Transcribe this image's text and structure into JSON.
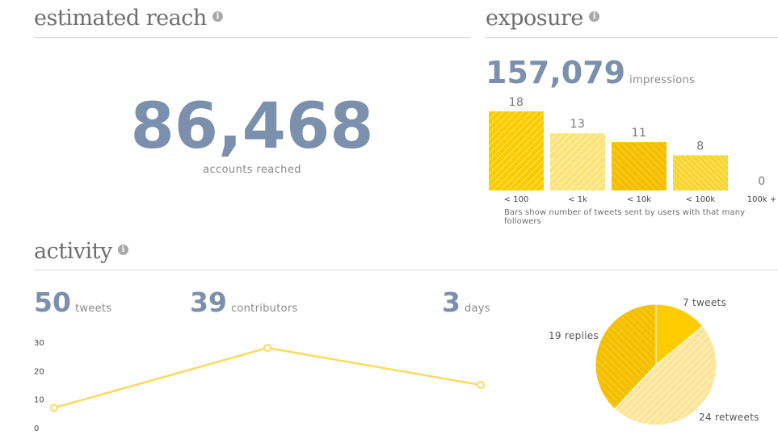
{
  "reach": {
    "title": "estimated reach",
    "info_icon": "info-icon",
    "value": "86,468",
    "label": "accounts reached"
  },
  "exposure": {
    "title": "exposure",
    "info_icon": "info-icon",
    "value": "157,079",
    "label": "impressions",
    "note": "Bars show number of tweets sent by users with that many followers"
  },
  "activity": {
    "title": "activity",
    "info_icon": "info-icon",
    "stats": [
      {
        "value": "50",
        "label": "tweets"
      },
      {
        "value": "39",
        "label": "contributors"
      },
      {
        "value": "3",
        "label": "days"
      }
    ]
  },
  "colors": {
    "accent": "#f8cc00",
    "accent_light": "#fbe37a",
    "accent_dark": "#f4bf00",
    "line": "#fada5e",
    "number": "#7b90ad"
  },
  "chart_data": [
    {
      "type": "bar",
      "categories": [
        "< 100",
        "< 1k",
        "< 10k",
        "< 100k",
        "100k +"
      ],
      "values": [
        18,
        13,
        11,
        8,
        0
      ],
      "data_labels": [
        "18",
        "13",
        "11",
        "8",
        "0"
      ],
      "ylim": [
        0,
        18
      ],
      "grid": false
    },
    {
      "type": "line",
      "x": [
        1,
        2,
        3
      ],
      "values": [
        7,
        28,
        15
      ],
      "yticks": [
        "0",
        "10",
        "20",
        "30"
      ],
      "ylim": [
        0,
        30
      ],
      "grid": false
    },
    {
      "type": "pie",
      "slices": [
        {
          "label": "7 tweets",
          "value": 7
        },
        {
          "label": "24 retweets",
          "value": 24
        },
        {
          "label": "19 replies",
          "value": 19
        }
      ]
    }
  ]
}
